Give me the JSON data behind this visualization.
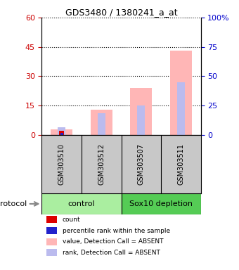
{
  "title": "GDS3480 / 1380241_a_at",
  "samples": [
    "GSM303510",
    "GSM303512",
    "GSM303507",
    "GSM303511"
  ],
  "groups": [
    "control",
    "control",
    "Sox10 depletion",
    "Sox10 depletion"
  ],
  "bar_pink": [
    3.0,
    13.0,
    24.0,
    43.0
  ],
  "bar_blue_rank": [
    4.0,
    11.0,
    15.0,
    27.0
  ],
  "bar_red": [
    2.0,
    0.0,
    0.0,
    0.0
  ],
  "bar_blue_dark": [
    1.0,
    0.0,
    0.0,
    0.0
  ],
  "ylim": [
    0,
    60
  ],
  "ylim_right": [
    0,
    100
  ],
  "yticks_left": [
    0,
    15,
    30,
    45,
    60
  ],
  "yticks_right": [
    0,
    25,
    50,
    75,
    100
  ],
  "ylabel_left_color": "#CC0000",
  "ylabel_right_color": "#0000CC",
  "bg_color": "#FFFFFF",
  "sample_bg": "#C8C8C8",
  "color_pink": "#FFB6B6",
  "color_light_blue": "#BBBBEE",
  "color_red": "#DD0000",
  "color_dark_blue": "#2222CC",
  "ctrl_green": "#AAEEA0",
  "sox_green": "#55CC55",
  "legend_items": [
    {
      "label": "count",
      "color": "#DD0000"
    },
    {
      "label": "percentile rank within the sample",
      "color": "#2222CC"
    },
    {
      "label": "value, Detection Call = ABSENT",
      "color": "#FFB6B6"
    },
    {
      "label": "rank, Detection Call = ABSENT",
      "color": "#BBBBEE"
    }
  ]
}
